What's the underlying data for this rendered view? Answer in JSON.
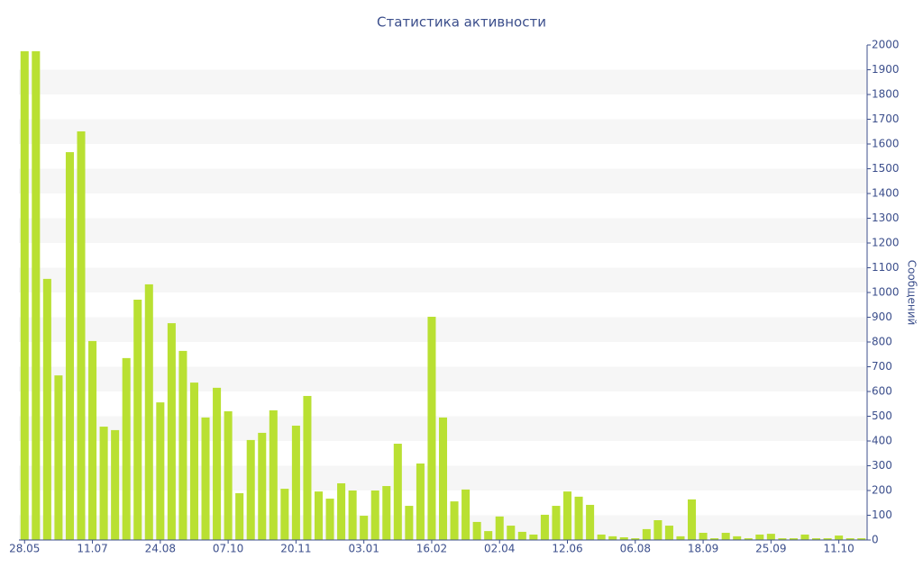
{
  "chart_data": {
    "type": "bar",
    "title": "Статистика активности",
    "y_label": "Сообщений",
    "categories": [
      "28.05",
      null,
      null,
      null,
      null,
      null,
      "11.07",
      null,
      null,
      null,
      null,
      null,
      "24.08",
      null,
      null,
      null,
      null,
      null,
      "07.10",
      null,
      null,
      null,
      null,
      null,
      "20.11",
      null,
      null,
      null,
      null,
      null,
      "03.01",
      null,
      null,
      null,
      null,
      null,
      "16.02",
      null,
      null,
      null,
      null,
      null,
      "02.04",
      null,
      null,
      null,
      null,
      null,
      "12.06",
      null,
      null,
      null,
      null,
      null,
      "06.08",
      null,
      null,
      null,
      null,
      null,
      "18.09",
      null,
      null,
      null,
      null,
      null,
      "25.09",
      null,
      null,
      null,
      null,
      null,
      "11.10",
      null,
      null
    ],
    "values": [
      1975,
      1975,
      1055,
      665,
      1567,
      1651,
      804,
      458,
      444,
      735,
      971,
      1033,
      556,
      876,
      764,
      636,
      495,
      615,
      520,
      189,
      404,
      433,
      524,
      207,
      462,
      582,
      196,
      167,
      229,
      200,
      98,
      200,
      218,
      389,
      138,
      309,
      902,
      495,
      156,
      204,
      73,
      36,
      95,
      58,
      33,
      22,
      102,
      138,
      196,
      175,
      142,
      22,
      15,
      11,
      7,
      44,
      80,
      58,
      15,
      164,
      29,
      7,
      29,
      15,
      7,
      22,
      25,
      7,
      7,
      22,
      7,
      7,
      18,
      7,
      7
    ],
    "color": "#b9e032",
    "ylim": [
      0,
      2000
    ],
    "yticks": [
      0,
      100,
      200,
      300,
      400,
      500,
      600,
      700,
      800,
      900,
      1000,
      1100,
      1200,
      1300,
      1400,
      1500,
      1600,
      1700,
      1800,
      1900,
      2000
    ],
    "grid": true
  }
}
